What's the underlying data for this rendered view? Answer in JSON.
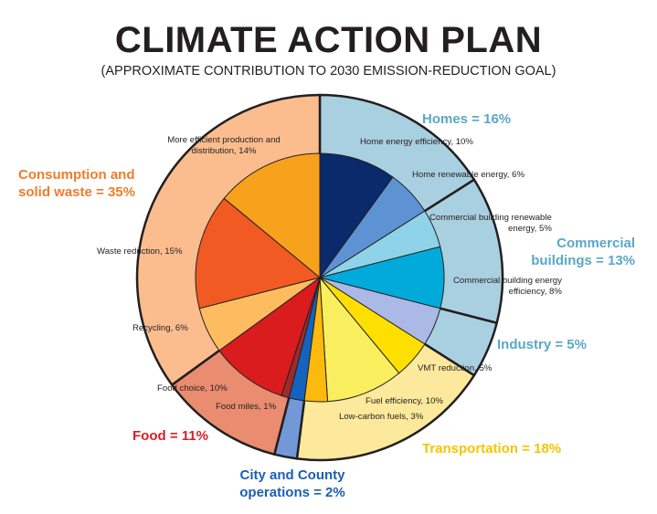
{
  "chart_data": {
    "type": "pie",
    "title": "CLIMATE ACTION PLAN",
    "subtitle": "(APPROXIMATE CONTRIBUTION TO 2030 EMISSION-REDUCTION GOAL)",
    "unit": "%",
    "outer_ring": [
      {
        "name": "Homes",
        "label": "Homes = 16%",
        "value": 16,
        "color": "#a9d0e1",
        "label_color": "#5aa7c8"
      },
      {
        "name": "Commercial buildings",
        "label": "Commercial buildings = 13%",
        "label_lines": [
          "Commercial",
          "buildings = 13%"
        ],
        "value": 13,
        "color": "#a9d0e1",
        "label_color": "#5aa7c8"
      },
      {
        "name": "Industry",
        "label": "Industry = 5%",
        "value": 5,
        "color": "#a9d0e1",
        "label_color": "#5aa7c8"
      },
      {
        "name": "Transportation",
        "label": "Transportation = 18%",
        "value": 18,
        "color": "#fde99c",
        "label_color": "#f6c400"
      },
      {
        "name": "City and County operations",
        "label": "City and County operations = 2%",
        "label_lines": [
          "City and County",
          "operations = 2%"
        ],
        "value": 2,
        "color": "#7298d8",
        "label_color": "#1b5fb3"
      },
      {
        "name": "Food",
        "label": "Food = 11%",
        "value": 11,
        "color": "#e98c6f",
        "label_color": "#d42027"
      },
      {
        "name": "Consumption and solid waste",
        "label": "Consumption and solid waste = 35%",
        "label_lines": [
          "Consumption and",
          "solid waste = 35%"
        ],
        "value": 35,
        "color": "#fbbd8e",
        "label_color": "#f07c2a"
      }
    ],
    "inner_pie": [
      {
        "name": "Home energy efficiency",
        "label": "Home energy efficiency, 10%",
        "value": 10,
        "color": "#0b2a6b"
      },
      {
        "name": "Home renewable energy",
        "label": "Home renewable energy, 6%",
        "value": 6,
        "color": "#5e93d3"
      },
      {
        "name": "Commercial building renewable energy",
        "label_lines": [
          "Commercial building renewable",
          "energy, 5%"
        ],
        "value": 5,
        "color": "#8ed3e8"
      },
      {
        "name": "Commercial building energy efficiency",
        "label_lines": [
          "Commercial building energy",
          "efficiency, 8%"
        ],
        "value": 8,
        "color": "#00abdb"
      },
      {
        "name": "Industry",
        "value": 5,
        "color": "#aab9e5"
      },
      {
        "name": "VMT reduction",
        "label": "VMT reduction, 5%",
        "value": 5,
        "color": "#ffdf00"
      },
      {
        "name": "Fuel efficiency",
        "label": "Fuel efficiency, 10%",
        "value": 10,
        "color": "#f9ef5e"
      },
      {
        "name": "Low-carbon fuels",
        "label": "Low-carbon fuels, 3%",
        "value": 3,
        "color": "#fbba0d"
      },
      {
        "name": "City and County operations",
        "value": 2,
        "color": "#1563be"
      },
      {
        "name": "Food miles",
        "label": "Food miles, 1%",
        "value": 1,
        "color": "#a02a2a"
      },
      {
        "name": "Food choice",
        "label": "Food choice, 10%",
        "value": 10,
        "color": "#da1c1f"
      },
      {
        "name": "Recycling",
        "label": "Recycling, 6%",
        "value": 6,
        "color": "#fdbc5f"
      },
      {
        "name": "Waste reduction",
        "label": "Waste reduction, 15%",
        "value": 15,
        "color": "#f15a22"
      },
      {
        "name": "More efficient production and distribution",
        "label_lines": [
          "More efficient production and",
          "distribution, 14%"
        ],
        "value": 14,
        "color": "#f8a11c"
      }
    ]
  }
}
